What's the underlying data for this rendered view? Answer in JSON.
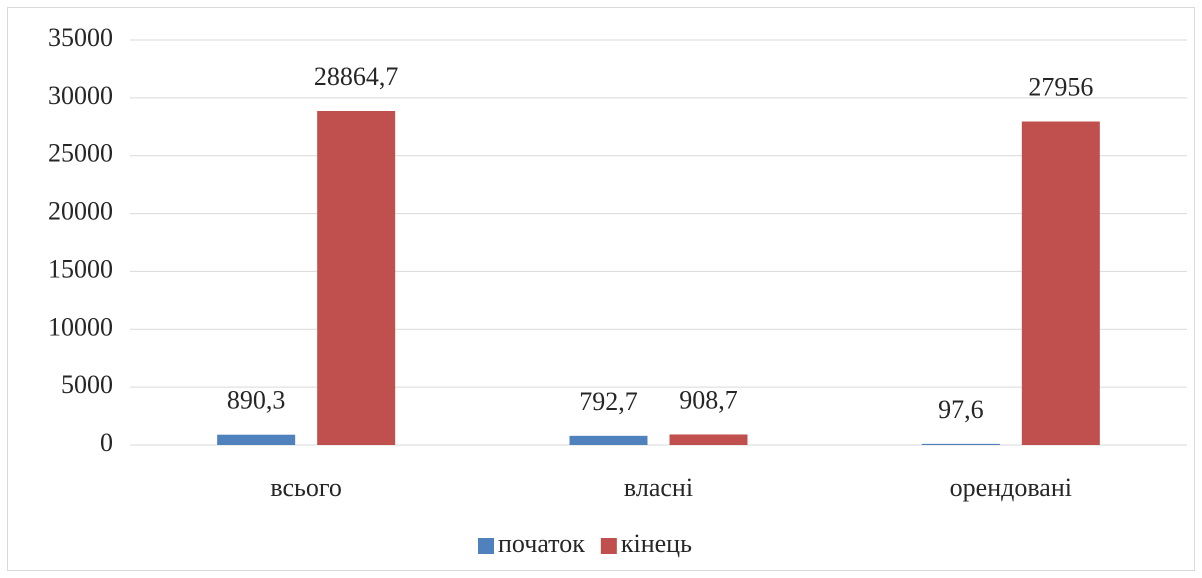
{
  "chart_data": {
    "type": "bar",
    "categories": [
      "всього",
      "власні",
      "орендовані"
    ],
    "series": [
      {
        "name": "початок",
        "color": "#4f81bd",
        "values": [
          890.3,
          792.7,
          97.6
        ],
        "value_labels": [
          "890,3",
          "792,7",
          "97,6"
        ]
      },
      {
        "name": "кінець",
        "color": "#c0504d",
        "values": [
          28864.7,
          908.7,
          27956
        ],
        "value_labels": [
          "28864,7",
          "908,7",
          "27956"
        ]
      }
    ],
    "ylim": [
      0,
      35000
    ],
    "yticks": [
      0,
      5000,
      10000,
      15000,
      20000,
      25000,
      30000,
      35000
    ],
    "grid": true,
    "legend": "bottom"
  }
}
